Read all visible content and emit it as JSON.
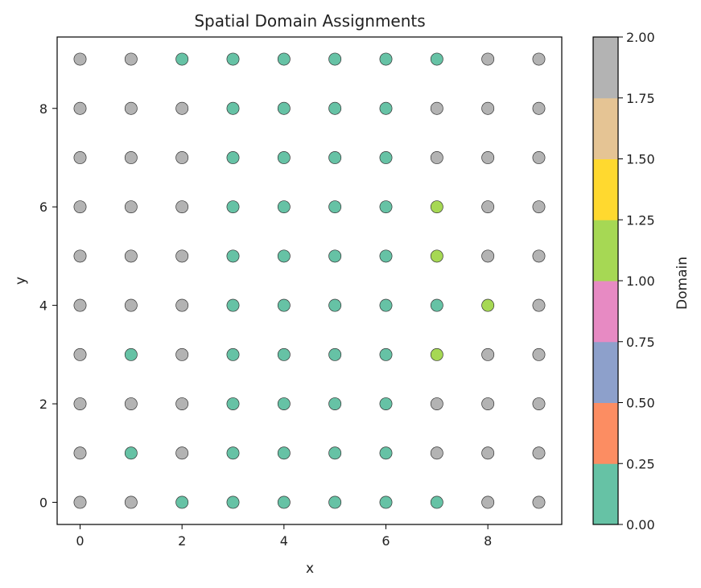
{
  "chart_data": {
    "type": "scatter",
    "title": "Spatial Domain Assignments",
    "xlabel": "x",
    "ylabel": "y",
    "xlim": [
      -0.45,
      9.45
    ],
    "ylim": [
      -0.45,
      9.45
    ],
    "x_ticks": [
      0,
      2,
      4,
      6,
      8
    ],
    "y_ticks": [
      0,
      2,
      4,
      6,
      8
    ],
    "grid": false,
    "colorbar": {
      "label": "Domain",
      "min": 0,
      "max": 2,
      "ticks": [
        "0.00",
        "0.25",
        "0.50",
        "0.75",
        "1.00",
        "1.25",
        "1.50",
        "1.75",
        "2.00"
      ],
      "colors": [
        "#66c2a5",
        "#fc8d62",
        "#8da0cb",
        "#e78ac3",
        "#a6d854",
        "#ffd92f",
        "#e5c494",
        "#b3b3b3"
      ]
    },
    "grid_values_by_row_y9_to_y0": [
      [
        2,
        2,
        0,
        0,
        0,
        0,
        0,
        0,
        2,
        2
      ],
      [
        2,
        2,
        2,
        0,
        0,
        0,
        0,
        2,
        2,
        2
      ],
      [
        2,
        2,
        2,
        0,
        0,
        0,
        0,
        2,
        2,
        2
      ],
      [
        2,
        2,
        2,
        0,
        0,
        0,
        0,
        1,
        2,
        2
      ],
      [
        2,
        2,
        2,
        0,
        0,
        0,
        0,
        1,
        2,
        2
      ],
      [
        2,
        2,
        2,
        0,
        0,
        0,
        0,
        0,
        1,
        2
      ],
      [
        2,
        0,
        2,
        0,
        0,
        0,
        0,
        1,
        2,
        2
      ],
      [
        2,
        2,
        2,
        0,
        0,
        0,
        0,
        2,
        2,
        2
      ],
      [
        2,
        0,
        2,
        0,
        0,
        0,
        0,
        2,
        2,
        2
      ],
      [
        2,
        2,
        0,
        0,
        0,
        0,
        0,
        0,
        2,
        2
      ]
    ],
    "point_colors": {
      "0": "#66c2a5",
      "1": "#a6d854",
      "2": "#b3b3b3"
    }
  }
}
